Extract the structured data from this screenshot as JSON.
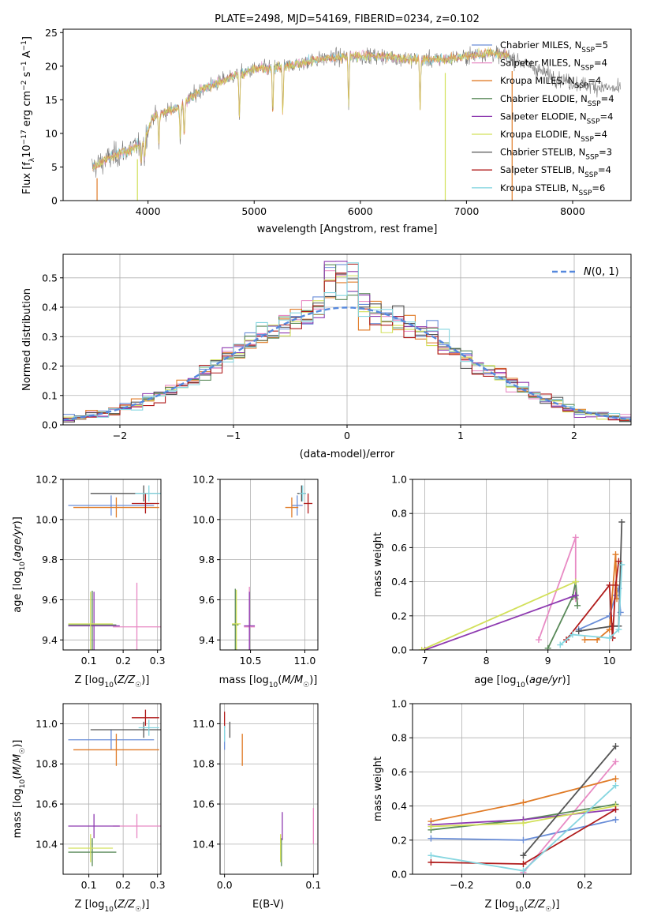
{
  "title": "PLATE=2498, MJD=54169, FIBERID=0234, z=0.102",
  "colors": {
    "Chabrier MILES": "#6a8ed8",
    "Salpeter MILES": "#e88ac4",
    "Kroupa MILES": "#e07b27",
    "Chabrier ELODIE": "#5a8a5a",
    "Salpeter ELODIE": "#8e3ab0",
    "Kroupa ELODIE": "#d2e05a",
    "Chabrier STELIB": "#555555",
    "Salpeter STELIB": "#b01a1a",
    "Kroupa STELIB": "#86d6e0"
  },
  "chart_data": [
    {
      "type": "line",
      "id": "spectrum",
      "title": "PLATE=2498, MJD=54169, FIBERID=0234, z=0.102",
      "xlabel": "wavelength [Angstrom, rest frame]",
      "ylabel": "Flux [f_λ 10^-17 erg cm^-2 s^-1 A^-1]",
      "xlim": [
        3200,
        8550
      ],
      "ylim": [
        0,
        25.5
      ],
      "xticks": [
        4000,
        5000,
        6000,
        7000,
        8000
      ],
      "yticks": [
        0,
        5,
        10,
        15,
        20,
        25
      ],
      "legend_location": "right",
      "continuum_x": [
        3480,
        3600,
        3800,
        3950,
        4050,
        4300,
        4500,
        4800,
        5000,
        5300,
        5600,
        5900,
        6200,
        6500,
        6800,
        7000,
        7200,
        7400,
        7600,
        7800,
        8000,
        8200,
        8450
      ],
      "continuum_y": [
        5,
        6,
        7.5,
        8.5,
        12.5,
        14,
        16.5,
        18.5,
        19.5,
        20,
        21,
        21.5,
        21.5,
        21,
        21,
        21.5,
        22,
        21.5,
        20,
        18.5,
        17.5,
        17,
        16.5
      ],
      "absorption_lines": [
        3934,
        3969,
        4102,
        4304,
        4341,
        4861,
        5175,
        5270,
        5890,
        6563
      ],
      "series": [
        {
          "name": "Chabrier MILES",
          "nssp": "5"
        },
        {
          "name": "Salpeter MILES",
          "nssp": "4"
        },
        {
          "name": "Kroupa MILES",
          "nssp": "4"
        },
        {
          "name": "Chabrier ELODIE",
          "nssp": "4"
        },
        {
          "name": "Salpeter ELODIE",
          "nssp": "4"
        },
        {
          "name": "Kroupa ELODIE",
          "nssp": "4"
        },
        {
          "name": "Chabrier STELIB",
          "nssp": "3"
        },
        {
          "name": "Salpeter STELIB",
          "nssp": "4"
        },
        {
          "name": "Kroupa STELIB",
          "nssp": "6"
        }
      ]
    },
    {
      "type": "histogram",
      "id": "residuals",
      "xlabel": "(data-model)/error",
      "ylabel": "Normed distribution",
      "xlim": [
        -2.5,
        2.5
      ],
      "ylim": [
        0,
        0.58
      ],
      "xticks": [
        -2,
        -1,
        0,
        1,
        2
      ],
      "yticks": [
        0.0,
        0.1,
        0.2,
        0.3,
        0.4,
        0.5
      ],
      "bin_width": 0.1,
      "reference_curve": "N(0,1)",
      "legend_location": "top-right",
      "grid": true
    },
    {
      "type": "scatter",
      "id": "age_vs_Z",
      "xlabel": "Z [log10(Z/Z☉)]",
      "ylabel": "age [log10(age/yr)]",
      "xlim": [
        0.025,
        0.31
      ],
      "ylim": [
        9.35,
        10.2
      ],
      "xticks": [
        0.1,
        0.2,
        0.3
      ],
      "yticks": [
        9.4,
        9.6,
        9.8,
        10.0,
        10.2
      ],
      "grid": true,
      "points": [
        {
          "series": "Chabrier MILES",
          "x": 0.165,
          "y": 10.07,
          "xerr": 0.125,
          "yerr": 0.05
        },
        {
          "series": "Salpeter MILES",
          "x": 0.24,
          "y": 9.465,
          "xerr": 0.07,
          "yerr": 0.22
        },
        {
          "series": "Kroupa MILES",
          "x": 0.18,
          "y": 10.06,
          "xerr": 0.125,
          "yerr": 0.05
        },
        {
          "series": "Chabrier ELODIE",
          "x": 0.11,
          "y": 9.475,
          "xerr": 0.07,
          "yerr": 0.17
        },
        {
          "series": "Salpeter ELODIE",
          "x": 0.115,
          "y": 9.47,
          "xerr": 0.075,
          "yerr": 0.17
        },
        {
          "series": "Kroupa ELODIE",
          "x": 0.105,
          "y": 9.48,
          "xerr": 0.065,
          "yerr": 0.16
        },
        {
          "series": "Chabrier STELIB",
          "x": 0.26,
          "y": 10.13,
          "xerr": 0.155,
          "yerr": 0.04
        },
        {
          "series": "Salpeter STELIB",
          "x": 0.265,
          "y": 10.08,
          "xerr": 0.04,
          "yerr": 0.05
        },
        {
          "series": "Kroupa STELIB",
          "x": 0.275,
          "y": 10.13,
          "xerr": 0.04,
          "yerr": 0.04
        }
      ]
    },
    {
      "type": "scatter",
      "id": "age_vs_mass",
      "xlabel": "mass [log10(M/M☉)]",
      "ylabel": "",
      "xlim": [
        10.22,
        11.12
      ],
      "ylim": [
        9.35,
        10.2
      ],
      "xticks": [
        10.5,
        11.0
      ],
      "yticks": [
        9.4,
        9.6,
        9.8,
        10.0,
        10.2
      ],
      "grid": true,
      "points": [
        {
          "series": "Chabrier MILES",
          "x": 10.93,
          "y": 10.07,
          "xerr": 0.05,
          "yerr": 0.05
        },
        {
          "series": "Salpeter MILES",
          "x": 10.49,
          "y": 9.465,
          "xerr": 0.05,
          "yerr": 0.2
        },
        {
          "series": "Kroupa MILES",
          "x": 10.88,
          "y": 10.06,
          "xerr": 0.06,
          "yerr": 0.05
        },
        {
          "series": "Chabrier ELODIE",
          "x": 10.36,
          "y": 9.475,
          "xerr": 0.03,
          "yerr": 0.18
        },
        {
          "series": "Salpeter ELODIE",
          "x": 10.49,
          "y": 9.47,
          "xerr": 0.05,
          "yerr": 0.17
        },
        {
          "series": "Kroupa ELODIE",
          "x": 10.37,
          "y": 9.48,
          "xerr": 0.04,
          "yerr": 0.17
        },
        {
          "series": "Chabrier STELIB",
          "x": 10.97,
          "y": 10.13,
          "xerr": 0.04,
          "yerr": 0.04
        },
        {
          "series": "Salpeter STELIB",
          "x": 11.03,
          "y": 10.08,
          "xerr": 0.04,
          "yerr": 0.05
        },
        {
          "series": "Kroupa STELIB",
          "x": 10.98,
          "y": 10.13,
          "xerr": 0.03,
          "yerr": 0.04
        }
      ]
    },
    {
      "type": "line",
      "id": "mass_weight_vs_age",
      "xlabel": "age [log10(age/yr)]",
      "ylabel": "mass weight",
      "xlim": [
        6.8,
        10.35
      ],
      "ylim": [
        0,
        1.0
      ],
      "xticks": [
        7,
        8,
        9,
        10
      ],
      "yticks": [
        0.0,
        0.2,
        0.4,
        0.6,
        0.8,
        1.0
      ],
      "grid": true,
      "series": [
        {
          "name": "Chabrier MILES",
          "x": [
            9.5,
            10.0,
            10.1,
            10.15,
            10.18
          ],
          "y": [
            0.12,
            0.2,
            0.32,
            0.36,
            0.22
          ]
        },
        {
          "name": "Salpeter MILES",
          "x": [
            8.85,
            9.45,
            9.45
          ],
          "y": [
            0.06,
            0.66,
            0.3
          ]
        },
        {
          "name": "Kroupa MILES",
          "x": [
            9.6,
            9.8,
            10.0,
            10.1,
            10.12
          ],
          "y": [
            0.06,
            0.06,
            0.12,
            0.56,
            0.3
          ]
        },
        {
          "name": "Chabrier ELODIE",
          "x": [
            9.0,
            9.4,
            9.45,
            9.48
          ],
          "y": [
            0.01,
            0.31,
            0.4,
            0.26
          ]
        },
        {
          "name": "Salpeter ELODIE",
          "x": [
            7.0,
            9.45
          ],
          "y": [
            0.0,
            0.32
          ]
        },
        {
          "name": "Kroupa ELODIE",
          "x": [
            6.95,
            9.45
          ],
          "y": [
            0.0,
            0.4
          ]
        },
        {
          "name": "Chabrier STELIB",
          "x": [
            9.5,
            10.05,
            10.15,
            10.2
          ],
          "y": [
            0.11,
            0.14,
            0.14,
            0.75
          ]
        },
        {
          "name": "Salpeter STELIB",
          "x": [
            9.3,
            10.0,
            10.05,
            10.1,
            10.15
          ],
          "y": [
            0.06,
            0.38,
            0.07,
            0.38,
            0.52
          ]
        },
        {
          "name": "Kroupa STELIB",
          "x": [
            9.2,
            9.4,
            10.0,
            10.15,
            10.2
          ],
          "y": [
            0.03,
            0.09,
            0.07,
            0.12,
            0.5
          ]
        }
      ]
    },
    {
      "type": "scatter",
      "id": "mass_vs_Z",
      "xlabel": "Z [log10(Z/Z☉)]",
      "ylabel": "mass [log10(M/M☉)]",
      "xlim": [
        0.025,
        0.31
      ],
      "ylim": [
        10.25,
        11.1
      ],
      "xticks": [
        0.1,
        0.2,
        0.3
      ],
      "yticks": [
        10.4,
        10.6,
        10.8,
        11.0
      ],
      "grid": true,
      "points": [
        {
          "series": "Chabrier MILES",
          "x": 0.165,
          "y": 10.92,
          "xerr": 0.125,
          "yerr": 0.05
        },
        {
          "series": "Salpeter MILES",
          "x": 0.24,
          "y": 10.49,
          "xerr": 0.07,
          "yerr": 0.06
        },
        {
          "series": "Kroupa MILES",
          "x": 0.18,
          "y": 10.87,
          "xerr": 0.125,
          "yerr": 0.08
        },
        {
          "series": "Chabrier ELODIE",
          "x": 0.11,
          "y": 10.36,
          "xerr": 0.07,
          "yerr": 0.07
        },
        {
          "series": "Salpeter ELODIE",
          "x": 0.115,
          "y": 10.49,
          "xerr": 0.075,
          "yerr": 0.06
        },
        {
          "series": "Kroupa ELODIE",
          "x": 0.105,
          "y": 10.38,
          "xerr": 0.065,
          "yerr": 0.07
        },
        {
          "series": "Chabrier STELIB",
          "x": 0.26,
          "y": 10.97,
          "xerr": 0.155,
          "yerr": 0.04
        },
        {
          "series": "Salpeter STELIB",
          "x": 0.265,
          "y": 11.03,
          "xerr": 0.04,
          "yerr": 0.04
        },
        {
          "series": "Kroupa STELIB",
          "x": 0.275,
          "y": 10.98,
          "xerr": 0.03,
          "yerr": 0.04
        }
      ]
    },
    {
      "type": "scatter",
      "id": "mass_vs_EBV",
      "xlabel": "E(B-V)",
      "ylabel": "",
      "xlim": [
        -0.005,
        0.105
      ],
      "ylim": [
        10.25,
        11.1
      ],
      "xticks": [
        0.0,
        0.1
      ],
      "yticks": [
        10.4,
        10.6,
        10.8,
        11.0
      ],
      "grid": true,
      "points": [
        {
          "series": "Chabrier MILES",
          "x": 0.0,
          "y": 10.92,
          "yerr": 0.05
        },
        {
          "series": "Salpeter MILES",
          "x": 0.1,
          "y": 10.49,
          "yerr": 0.09
        },
        {
          "series": "Kroupa MILES",
          "x": 0.02,
          "y": 10.87,
          "yerr": 0.08
        },
        {
          "series": "Chabrier ELODIE",
          "x": 0.064,
          "y": 10.36,
          "yerr": 0.07
        },
        {
          "series": "Salpeter ELODIE",
          "x": 0.065,
          "y": 10.49,
          "yerr": 0.07
        },
        {
          "series": "Kroupa ELODIE",
          "x": 0.063,
          "y": 10.38,
          "yerr": 0.07
        },
        {
          "series": "Chabrier STELIB",
          "x": 0.006,
          "y": 10.97,
          "yerr": 0.04
        },
        {
          "series": "Salpeter STELIB",
          "x": 0.0,
          "y": 11.02,
          "yerr": 0.04
        },
        {
          "series": "Kroupa STELIB",
          "x": 0.0,
          "y": 10.95,
          "yerr": 0.04
        }
      ]
    },
    {
      "type": "line",
      "id": "mass_weight_vs_Z",
      "xlabel": "Z [log10(Z/Z☉)]",
      "ylabel": "mass weight",
      "xlim": [
        -0.36,
        0.35
      ],
      "ylim": [
        0,
        1.0
      ],
      "xticks": [
        -0.2,
        0.0,
        0.2
      ],
      "yticks": [
        0.0,
        0.2,
        0.4,
        0.6,
        0.8,
        1.0
      ],
      "grid": true,
      "series": [
        {
          "name": "Chabrier MILES",
          "x": [
            -0.3,
            0.0,
            0.3
          ],
          "y": [
            0.21,
            0.2,
            0.32
          ]
        },
        {
          "name": "Salpeter MILES",
          "x": [
            0.0,
            0.3
          ],
          "y": [
            0.01,
            0.66
          ]
        },
        {
          "name": "Kroupa MILES",
          "x": [
            -0.3,
            0.0,
            0.3
          ],
          "y": [
            0.31,
            0.42,
            0.56
          ]
        },
        {
          "name": "Chabrier ELODIE",
          "x": [
            -0.3,
            0.0,
            0.3
          ],
          "y": [
            0.26,
            0.32,
            0.41
          ]
        },
        {
          "name": "Salpeter ELODIE",
          "x": [
            -0.3,
            0.0,
            0.3
          ],
          "y": [
            0.29,
            0.32,
            0.38
          ]
        },
        {
          "name": "Kroupa ELODIE",
          "x": [
            -0.3,
            0.0,
            0.3
          ],
          "y": [
            0.28,
            0.3,
            0.4
          ]
        },
        {
          "name": "Chabrier STELIB",
          "x": [
            0.0,
            0.3
          ],
          "y": [
            0.11,
            0.75
          ]
        },
        {
          "name": "Salpeter STELIB",
          "x": [
            -0.3,
            0.0,
            0.3
          ],
          "y": [
            0.07,
            0.06,
            0.38
          ]
        },
        {
          "name": "Kroupa STELIB",
          "x": [
            -0.3,
            0.0,
            0.3
          ],
          "y": [
            0.11,
            0.02,
            0.52
          ]
        }
      ]
    }
  ]
}
